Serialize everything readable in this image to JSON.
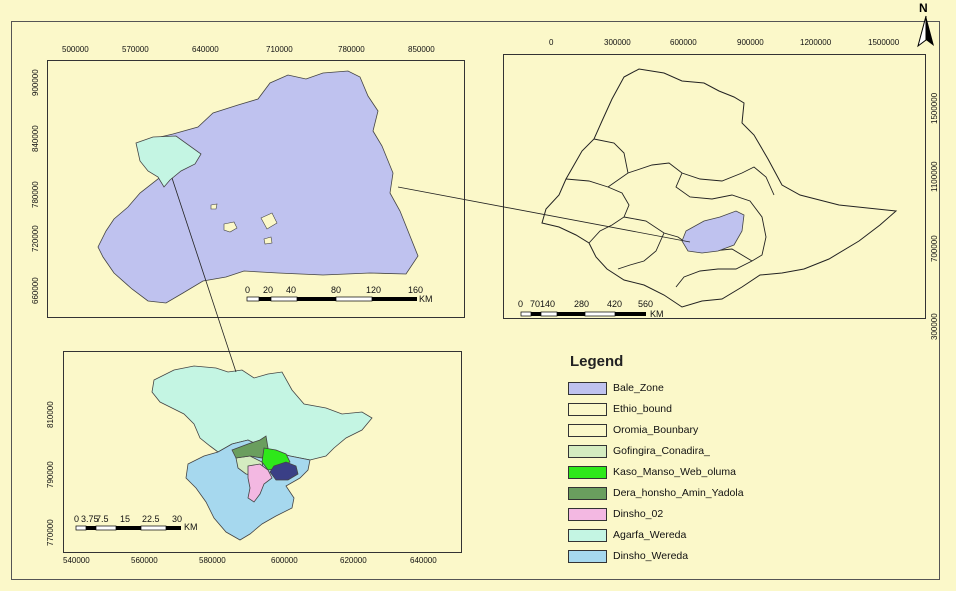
{
  "north_arrow": {
    "letter": "N"
  },
  "bale_map": {
    "x_ticks": [
      "500000",
      "570000",
      "640000",
      "710000",
      "780000",
      "850000"
    ],
    "y_ticks": [
      "900000",
      "840000",
      "780000",
      "720000",
      "660000"
    ],
    "scale_bar": {
      "labels": [
        "0",
        "20",
        "40",
        "80",
        "120",
        "160"
      ],
      "unit": "KM"
    }
  },
  "ethiopia_map": {
    "x_ticks": [
      "0",
      "300000",
      "600000",
      "900000",
      "1200000",
      "1500000"
    ],
    "y_ticks": [
      "1500000",
      "1100000",
      "700000",
      "300000"
    ],
    "scale_bar": {
      "labels": [
        "0",
        "70",
        "140",
        "280",
        "420",
        "560"
      ],
      "unit": "KM"
    }
  },
  "dinsho_map": {
    "x_ticks": [
      "540000",
      "560000",
      "580000",
      "600000",
      "620000",
      "640000"
    ],
    "y_ticks": [
      "810000",
      "790000",
      "770000"
    ],
    "scale_bar": {
      "labels": [
        "0",
        "3.75",
        "7.5",
        "15",
        "22.5",
        "30"
      ],
      "unit": "KM"
    }
  },
  "legend": {
    "title": "Legend",
    "items": [
      {
        "label": "Bale_Zone",
        "color": "#bfc2ef"
      },
      {
        "label": "Ethio_bound",
        "color": "#fbf8c9"
      },
      {
        "label": "Oromia_Bounbary",
        "color": "#fbf8c9"
      },
      {
        "label": "Gofingira_Conadira_",
        "color": "#d4ecc0"
      },
      {
        "label": "Kaso_Manso_Web_oluma",
        "color": "#2ee81a"
      },
      {
        "label": "Dera_honsho_Amin_Yadola",
        "color": "#6a9e5e"
      },
      {
        "label": "Dinsho_02",
        "color": "#f3b8e2"
      },
      {
        "label": "Agarfa_Wereda",
        "color": "#c4f5e3"
      },
      {
        "label": "Dinsho_Wereda",
        "color": "#a6d8ee"
      }
    ]
  },
  "colors": {
    "background": "#fbf8c9",
    "bale_zone": "#bfc2ef",
    "agarfa": "#c4f5e3",
    "dinsho_wereda": "#a6d8ee",
    "kaso": "#2ee81a",
    "dera": "#6a9e5e",
    "dinsho02": "#f3b8e2",
    "navy_area": "#3a3f86"
  }
}
